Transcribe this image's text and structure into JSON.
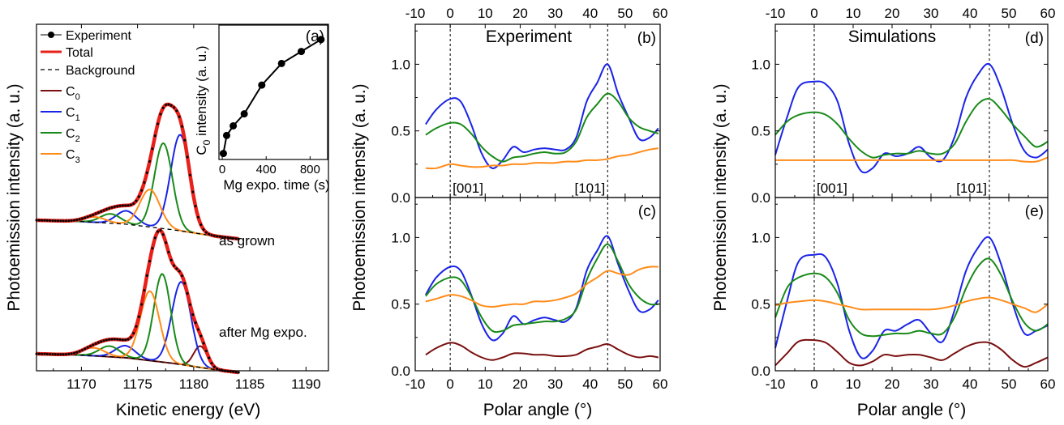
{
  "colors": {
    "experiment": "#000000",
    "total": "#e8201a",
    "background": "#000000",
    "C0": "#7a1010",
    "C1": "#1a24e6",
    "C2": "#198a19",
    "C3": "#ff8c1a"
  },
  "chart_data": [
    {
      "id": "spectra",
      "type": "line",
      "xlabel": "Kinetic energy (eV)",
      "ylabel": "Photoemission intensity (a. u.)",
      "xlim": [
        1166,
        1192
      ],
      "xticks": [
        1170,
        1175,
        1180,
        1185,
        1190
      ],
      "legend": [
        "Experiment",
        "Total",
        "Background",
        "C0",
        "C1",
        "C2",
        "C3"
      ],
      "annotations": [
        "as grown",
        "after Mg expo."
      ],
      "components": {
        "as_grown": {
          "offset": 0.58,
          "background": {
            "x": [
              1166,
              1170,
              1174,
              1178,
              1182,
              1184
            ],
            "y": [
              0.0,
              -0.005,
              -0.015,
              -0.035,
              -0.06,
              -0.07
            ]
          },
          "C0": {
            "center": 1180.6,
            "height": 0.0,
            "width": 0.7
          },
          "C1": {
            "center": 1178.8,
            "height": 0.36,
            "width": 0.85
          },
          "C2": {
            "center": 1177.3,
            "height": 0.32,
            "width": 0.8
          },
          "C3": {
            "center": 1176.1,
            "height": 0.14,
            "width": 0.9
          },
          "C1b": {
            "center": 1174.0,
            "height": 0.05,
            "width": 0.9
          },
          "C2b": {
            "center": 1172.6,
            "height": 0.035,
            "width": 0.9
          },
          "C3b": {
            "center": 1171.2,
            "height": 0.02,
            "width": 1.0
          }
        },
        "after_mg": {
          "offset": 0.0,
          "background": {
            "x": [
              1166,
              1170,
              1174,
              1178,
              1182,
              1184
            ],
            "y": [
              0.0,
              -0.005,
              -0.015,
              -0.035,
              -0.06,
              -0.07
            ]
          },
          "C0": {
            "center": 1180.6,
            "height": 0.08,
            "width": 0.6
          },
          "C1": {
            "center": 1178.9,
            "height": 0.31,
            "width": 0.85
          },
          "C2": {
            "center": 1177.2,
            "height": 0.33,
            "width": 0.75
          },
          "C3": {
            "center": 1176.1,
            "height": 0.26,
            "width": 0.85
          },
          "C1b": {
            "center": 1173.9,
            "height": 0.045,
            "width": 0.9
          },
          "C2b": {
            "center": 1172.5,
            "height": 0.04,
            "width": 0.9
          },
          "C3b": {
            "center": 1171.1,
            "height": 0.03,
            "width": 1.0
          }
        }
      }
    },
    {
      "id": "inset_a",
      "type": "line",
      "panel_label": "(a)",
      "xlabel": "Mg expo. time (s)",
      "ylabel": "C0 intensity (a. u.)",
      "xlim": [
        -30,
        960
      ],
      "ylim": [
        0,
        1.12
      ],
      "xticks": [
        0,
        400,
        800
      ],
      "x": [
        10,
        40,
        100,
        200,
        360,
        540,
        720,
        900
      ],
      "y": [
        0.05,
        0.2,
        0.28,
        0.38,
        0.62,
        0.8,
        0.9,
        1.0
      ]
    },
    {
      "id": "b",
      "type": "line",
      "panel_label": "(b)",
      "title": "Experiment",
      "xlim": [
        -10,
        60
      ],
      "ylim": [
        0,
        1.3
      ],
      "xticks": [
        -10,
        0,
        10,
        20,
        30,
        40,
        50,
        60
      ],
      "yticks": [
        "0.0",
        "0.5",
        "1.0"
      ],
      "vlines": [
        0,
        45
      ],
      "annotations": [
        "[001]",
        "[101]"
      ],
      "series": [
        {
          "color": "C1",
          "x": [
            -7,
            -4,
            0,
            3,
            6,
            9,
            12,
            15,
            18,
            21,
            24,
            27,
            30,
            33,
            36,
            39,
            42,
            45,
            48,
            51,
            54,
            57,
            59.5
          ],
          "y": [
            0.55,
            0.66,
            0.74,
            0.72,
            0.55,
            0.33,
            0.22,
            0.28,
            0.38,
            0.34,
            0.36,
            0.37,
            0.36,
            0.36,
            0.45,
            0.72,
            0.86,
            1.0,
            0.78,
            0.6,
            0.44,
            0.45,
            0.52
          ]
        },
        {
          "color": "C2",
          "x": [
            -7,
            -4,
            0,
            3,
            6,
            9,
            12,
            15,
            18,
            21,
            24,
            27,
            30,
            33,
            36,
            39,
            42,
            45,
            48,
            51,
            54,
            57,
            59.5
          ],
          "y": [
            0.47,
            0.52,
            0.56,
            0.55,
            0.48,
            0.38,
            0.31,
            0.27,
            0.3,
            0.31,
            0.33,
            0.34,
            0.33,
            0.34,
            0.42,
            0.6,
            0.7,
            0.78,
            0.72,
            0.6,
            0.53,
            0.5,
            0.48
          ]
        },
        {
          "color": "C3",
          "x": [
            -7,
            -4,
            0,
            3,
            6,
            9,
            12,
            15,
            18,
            21,
            24,
            27,
            30,
            33,
            36,
            39,
            42,
            45,
            48,
            51,
            54,
            57,
            59.5
          ],
          "y": [
            0.22,
            0.22,
            0.25,
            0.24,
            0.23,
            0.23,
            0.24,
            0.24,
            0.25,
            0.25,
            0.26,
            0.26,
            0.26,
            0.27,
            0.27,
            0.28,
            0.28,
            0.29,
            0.31,
            0.32,
            0.34,
            0.36,
            0.37
          ]
        }
      ]
    },
    {
      "id": "c",
      "type": "line",
      "panel_label": "(c)",
      "xlim": [
        -10,
        60
      ],
      "ylim": [
        0,
        1.3
      ],
      "xticks": [
        -10,
        0,
        10,
        20,
        30,
        40,
        50,
        60
      ],
      "yticks": [
        "0.0",
        "0.5",
        "1.0"
      ],
      "xlabel": "Polar angle (°)",
      "vlines": [
        0,
        45
      ],
      "series": [
        {
          "color": "C1",
          "x": [
            -7,
            -4,
            0,
            3,
            6,
            9,
            12,
            15,
            18,
            21,
            24,
            27,
            30,
            33,
            36,
            39,
            42,
            45,
            48,
            51,
            54,
            57,
            59.5
          ],
          "y": [
            0.57,
            0.7,
            0.78,
            0.75,
            0.57,
            0.35,
            0.23,
            0.28,
            0.41,
            0.35,
            0.38,
            0.4,
            0.38,
            0.37,
            0.47,
            0.75,
            0.9,
            1.01,
            0.8,
            0.6,
            0.45,
            0.46,
            0.53
          ]
        },
        {
          "color": "C2",
          "x": [
            -7,
            -4,
            0,
            3,
            6,
            9,
            12,
            15,
            18,
            21,
            24,
            27,
            30,
            33,
            36,
            39,
            42,
            45,
            48,
            51,
            54,
            57,
            59.5
          ],
          "y": [
            0.56,
            0.65,
            0.7,
            0.68,
            0.56,
            0.4,
            0.3,
            0.3,
            0.34,
            0.35,
            0.36,
            0.37,
            0.37,
            0.39,
            0.46,
            0.68,
            0.84,
            0.95,
            0.82,
            0.65,
            0.55,
            0.5,
            0.5
          ]
        },
        {
          "color": "C3",
          "x": [
            -7,
            -4,
            0,
            3,
            6,
            9,
            12,
            15,
            18,
            21,
            24,
            27,
            30,
            33,
            36,
            39,
            42,
            45,
            48,
            51,
            54,
            57,
            59.5
          ],
          "y": [
            0.52,
            0.54,
            0.57,
            0.56,
            0.53,
            0.49,
            0.48,
            0.49,
            0.5,
            0.5,
            0.52,
            0.52,
            0.53,
            0.55,
            0.58,
            0.65,
            0.7,
            0.75,
            0.73,
            0.72,
            0.76,
            0.78,
            0.78
          ]
        },
        {
          "color": "C0",
          "x": [
            -7,
            -4,
            0,
            3,
            6,
            9,
            12,
            15,
            18,
            21,
            24,
            27,
            30,
            33,
            36,
            39,
            42,
            45,
            48,
            51,
            54,
            57,
            59.5
          ],
          "y": [
            0.12,
            0.17,
            0.21,
            0.19,
            0.14,
            0.1,
            0.08,
            0.1,
            0.13,
            0.13,
            0.12,
            0.12,
            0.11,
            0.11,
            0.12,
            0.16,
            0.18,
            0.2,
            0.16,
            0.12,
            0.1,
            0.11,
            0.1
          ]
        }
      ]
    },
    {
      "id": "d",
      "type": "line",
      "panel_label": "(d)",
      "title": "Simulations",
      "xlim": [
        -10,
        60
      ],
      "ylim": [
        0,
        1.3
      ],
      "xticks": [
        -10,
        0,
        10,
        20,
        30,
        40,
        50,
        60
      ],
      "yticks": [
        "0.0",
        "0.5",
        "1.0"
      ],
      "vlines": [
        0,
        45
      ],
      "annotations": [
        "[001]",
        "[101]"
      ],
      "series": [
        {
          "color": "C1",
          "x": [
            -10,
            -7,
            -4,
            0,
            3,
            6,
            9,
            12,
            15,
            18,
            21,
            24,
            27,
            30,
            33,
            36,
            39,
            42,
            45,
            48,
            51,
            54,
            57,
            60
          ],
          "y": [
            0.32,
            0.6,
            0.83,
            0.87,
            0.85,
            0.72,
            0.4,
            0.2,
            0.22,
            0.33,
            0.31,
            0.33,
            0.38,
            0.3,
            0.28,
            0.45,
            0.75,
            0.92,
            1.0,
            0.82,
            0.55,
            0.35,
            0.3,
            0.36
          ]
        },
        {
          "color": "C2",
          "x": [
            -10,
            -7,
            -4,
            0,
            3,
            6,
            9,
            12,
            15,
            18,
            21,
            24,
            27,
            30,
            33,
            36,
            39,
            42,
            45,
            48,
            51,
            54,
            57,
            60
          ],
          "y": [
            0.47,
            0.57,
            0.62,
            0.64,
            0.62,
            0.55,
            0.44,
            0.35,
            0.3,
            0.32,
            0.33,
            0.33,
            0.35,
            0.33,
            0.33,
            0.4,
            0.57,
            0.7,
            0.74,
            0.66,
            0.55,
            0.46,
            0.38,
            0.42
          ]
        },
        {
          "color": "C3",
          "x": [
            -10,
            -7,
            -4,
            0,
            3,
            6,
            9,
            12,
            15,
            18,
            21,
            24,
            27,
            30,
            33,
            36,
            39,
            42,
            45,
            48,
            51,
            54,
            57,
            60
          ],
          "y": [
            0.28,
            0.28,
            0.28,
            0.28,
            0.28,
            0.28,
            0.28,
            0.28,
            0.28,
            0.28,
            0.28,
            0.28,
            0.28,
            0.28,
            0.28,
            0.28,
            0.28,
            0.28,
            0.28,
            0.28,
            0.28,
            0.27,
            0.27,
            0.3
          ]
        }
      ]
    },
    {
      "id": "e",
      "type": "line",
      "panel_label": "(e)",
      "xlim": [
        -10,
        60
      ],
      "ylim": [
        0,
        1.3
      ],
      "xticks": [
        -10,
        0,
        10,
        20,
        30,
        40,
        50,
        60
      ],
      "yticks": [
        "0.0",
        "0.5",
        "1.0"
      ],
      "xlabel": "Polar angle (°)",
      "vlines": [
        0,
        45
      ],
      "series": [
        {
          "color": "C1",
          "x": [
            -10,
            -7,
            -4,
            0,
            3,
            6,
            9,
            12,
            15,
            18,
            21,
            24,
            27,
            30,
            33,
            36,
            39,
            42,
            45,
            48,
            51,
            54,
            57,
            60
          ],
          "y": [
            0.17,
            0.52,
            0.82,
            0.87,
            0.85,
            0.65,
            0.3,
            0.1,
            0.15,
            0.3,
            0.3,
            0.35,
            0.38,
            0.28,
            0.22,
            0.45,
            0.75,
            0.92,
            1.0,
            0.8,
            0.5,
            0.28,
            0.3,
            0.34
          ]
        },
        {
          "color": "C2",
          "x": [
            -10,
            -7,
            -4,
            0,
            3,
            6,
            9,
            12,
            15,
            18,
            21,
            24,
            27,
            30,
            33,
            36,
            39,
            42,
            45,
            48,
            51,
            54,
            57,
            60
          ],
          "y": [
            0.4,
            0.62,
            0.7,
            0.73,
            0.7,
            0.58,
            0.38,
            0.28,
            0.26,
            0.27,
            0.28,
            0.28,
            0.3,
            0.28,
            0.28,
            0.4,
            0.62,
            0.78,
            0.84,
            0.72,
            0.52,
            0.36,
            0.3,
            0.35
          ]
        },
        {
          "color": "C3",
          "x": [
            -10,
            -7,
            -4,
            0,
            3,
            6,
            9,
            12,
            15,
            18,
            21,
            24,
            27,
            30,
            33,
            36,
            39,
            42,
            45,
            48,
            51,
            54,
            57,
            60
          ],
          "y": [
            0.49,
            0.51,
            0.52,
            0.53,
            0.52,
            0.5,
            0.48,
            0.46,
            0.46,
            0.46,
            0.46,
            0.46,
            0.46,
            0.46,
            0.47,
            0.49,
            0.52,
            0.54,
            0.55,
            0.53,
            0.5,
            0.47,
            0.44,
            0.5
          ]
        },
        {
          "color": "C0",
          "x": [
            -10,
            -7,
            -4,
            0,
            3,
            6,
            9,
            12,
            15,
            18,
            21,
            24,
            27,
            30,
            33,
            36,
            39,
            42,
            45,
            48,
            51,
            54,
            57,
            60
          ],
          "y": [
            0.04,
            0.13,
            0.22,
            0.23,
            0.21,
            0.14,
            0.06,
            0.04,
            0.07,
            0.12,
            0.11,
            0.12,
            0.12,
            0.1,
            0.08,
            0.13,
            0.18,
            0.21,
            0.21,
            0.16,
            0.08,
            0.03,
            0.06,
            0.1
          ]
        }
      ]
    }
  ]
}
